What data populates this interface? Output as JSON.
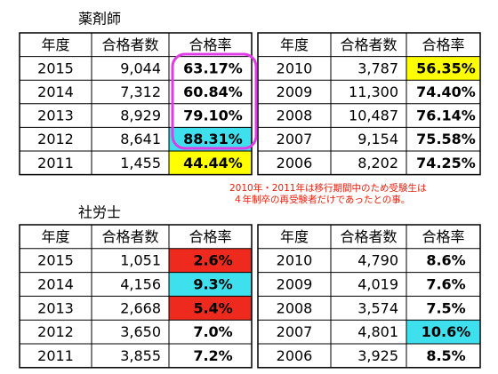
{
  "sections": [
    {
      "title": "薬剤師",
      "header": [
        "年度",
        "合格者数",
        "合格率",
        "年度",
        "合格者数",
        "合格率"
      ],
      "rows": [
        [
          "2015",
          "9,044",
          "63.17%",
          "2010",
          "3,787",
          "56.35%"
        ],
        [
          "2014",
          "7,312",
          "60.84%",
          "2009",
          "11,300",
          "74.40%"
        ],
        [
          "2013",
          "8,929",
          "79.10%",
          "2008",
          "10,487",
          "76.14%"
        ],
        [
          "2012",
          "8,641",
          "88.31%",
          "2007",
          "9,154",
          "75.58%"
        ],
        [
          "2011",
          "1,455",
          "44.44%",
          "2006",
          "8,202",
          "74.25%"
        ]
      ]
    },
    {
      "title": "社労士",
      "header": [
        "年度",
        "合格者数",
        "合格率",
        "年度",
        "合格者数",
        "合格率"
      ],
      "rows": [
        [
          "2015",
          "1,051",
          "2.6%",
          "2010",
          "4,790",
          "8.6%"
        ],
        [
          "2014",
          "4,156",
          "9.3%",
          "2009",
          "4,019",
          "7.6%"
        ],
        [
          "2013",
          "2,668",
          "5.4%",
          "2008",
          "3,574",
          "7.5%"
        ],
        [
          "2012",
          "3,650",
          "7.0%",
          "2007",
          "4,801",
          "10.6%"
        ],
        [
          "2011",
          "3,855",
          "7.2%",
          "2006",
          "3,925",
          "8.5%"
        ]
      ]
    }
  ],
  "note": [
    "2010年・2011年は移行期間中のため受験生は",
    "４年制卒の再受験者だけであったとの事。"
  ]
}
